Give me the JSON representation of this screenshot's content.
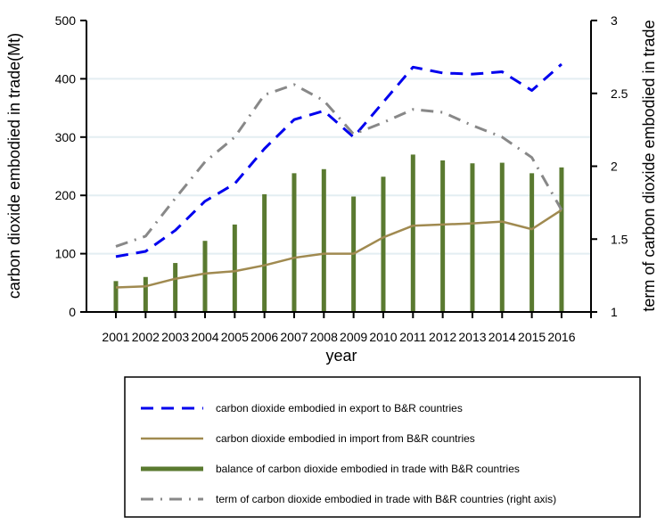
{
  "chart_data": {
    "type": "bar+line",
    "xlabel": "year",
    "ylabel": "carbon dioxide embodied in trade(Mt)",
    "y2label": "term of carbon dioxide embodied in trade",
    "ylim": [
      0,
      500
    ],
    "yticks": [
      0,
      100,
      200,
      300,
      400,
      500
    ],
    "y2lim": [
      1,
      3
    ],
    "y2ticks": [
      "1",
      "1.5",
      "2",
      "2.5",
      "3"
    ],
    "grid": "horizontal",
    "categories": [
      "2001",
      "2002",
      "2003",
      "2004",
      "2005",
      "2006",
      "2007",
      "2008",
      "2009",
      "2010",
      "2011",
      "2012",
      "2013",
      "2014",
      "2015",
      "2016"
    ],
    "series": [
      {
        "name": "carbon dioxide embodied in export to B&R countries",
        "type": "line",
        "axis": "left",
        "color": "#0000ee",
        "values": [
          95,
          104,
          140,
          190,
          220,
          280,
          330,
          345,
          300,
          360,
          420,
          410,
          408,
          412,
          380,
          425
        ]
      },
      {
        "name": "carbon dioxide embodied in import from B&R countries",
        "type": "line",
        "axis": "left",
        "color": "#a08a50",
        "values": [
          42,
          44,
          57,
          66,
          70,
          80,
          93,
          100,
          100,
          128,
          148,
          150,
          152,
          155,
          142,
          175
        ]
      },
      {
        "name": "balance of carbon dioxide embodied in trade with B&R countries",
        "type": "bar",
        "axis": "left",
        "color": "#5a7a30",
        "values": [
          53,
          60,
          84,
          122,
          150,
          202,
          238,
          245,
          198,
          232,
          270,
          260,
          255,
          256,
          238,
          248
        ]
      },
      {
        "name": "term of carbon dioxide embodied in trade with B&R countries (right axis)",
        "type": "line",
        "axis": "right",
        "color": "#888888",
        "values": [
          1.45,
          1.52,
          1.78,
          2.03,
          2.2,
          2.49,
          2.56,
          2.45,
          2.22,
          2.3,
          2.39,
          2.37,
          2.28,
          2.2,
          2.06,
          1.7
        ]
      }
    ],
    "legend": "bottom"
  }
}
